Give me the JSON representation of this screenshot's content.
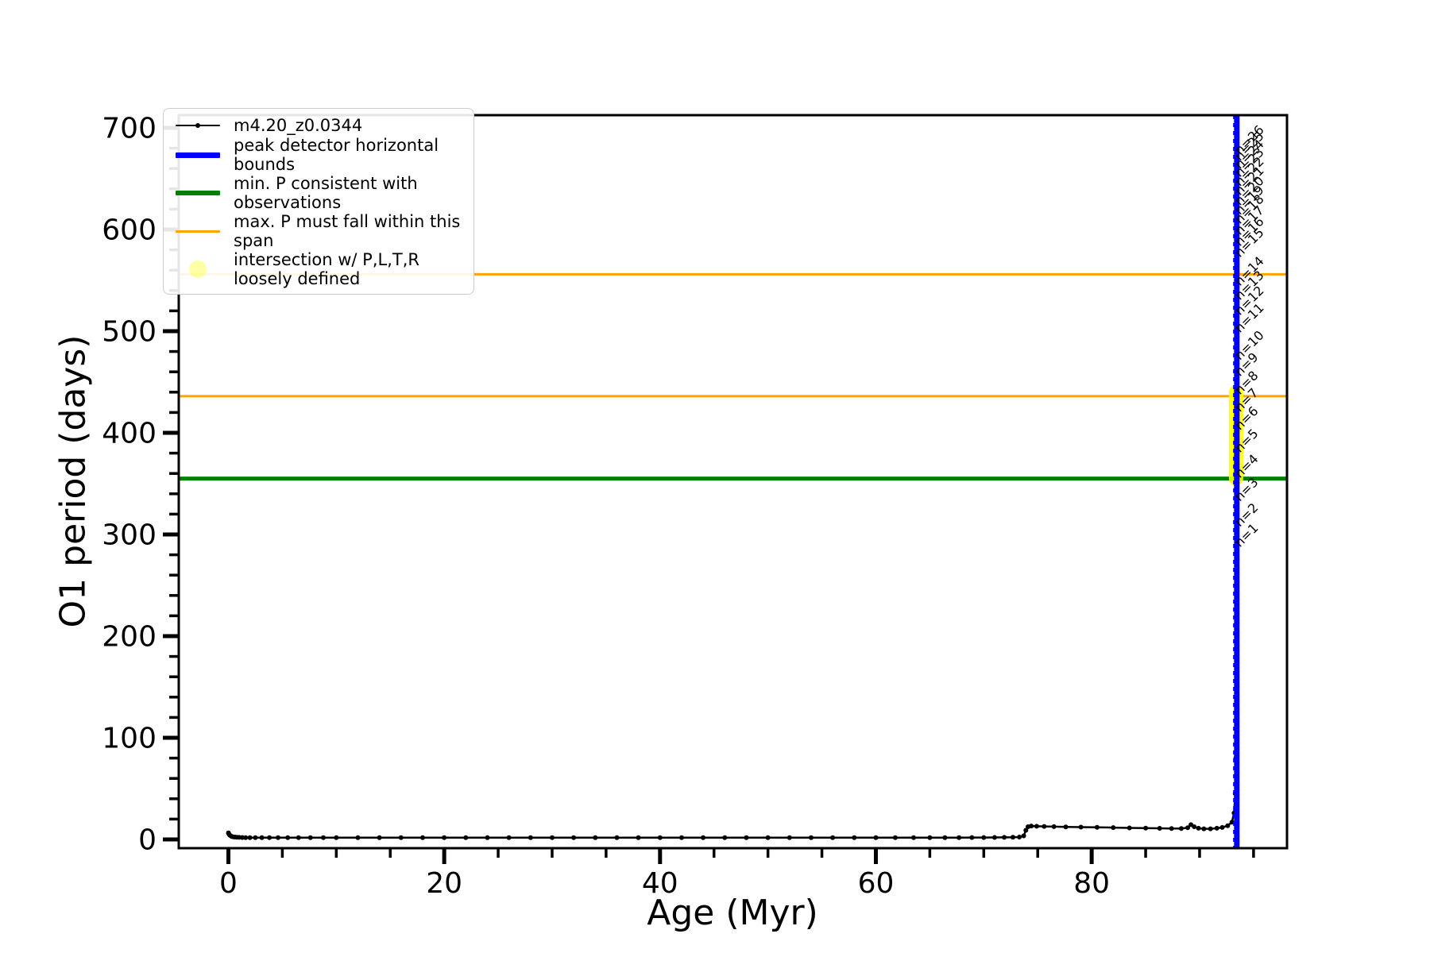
{
  "figure": {
    "xlabel": "Age (Myr)",
    "ylabel": "O1 period (days)"
  },
  "legend": {
    "items": [
      {
        "label": "m4.20_z0.0344",
        "swatch": "line-dot",
        "color": "#000000"
      },
      {
        "label": "peak detector horizontal bounds",
        "swatch": "thick-line",
        "color": "#0000FF"
      },
      {
        "label": "min. P consistent with observations",
        "swatch": "thick-line",
        "color": "#008000"
      },
      {
        "label": "max. P must fall within this span",
        "swatch": "line",
        "color": "#FFA500"
      },
      {
        "label": "intersection w/ P,L,T,R",
        "label2": "loosely defined",
        "swatch": "circle",
        "color": "#FFFF00"
      }
    ]
  },
  "chart_data": {
    "type": "line",
    "title": "",
    "xlabel": "Age (Myr)",
    "ylabel": "O1 period (days)",
    "xlim": [
      -4.6,
      98.1
    ],
    "ylim": [
      -8.6,
      712.5
    ],
    "xticks_major": [
      0,
      20,
      40,
      60,
      80
    ],
    "xticks_minor": [
      5,
      10,
      15,
      25,
      30,
      35,
      45,
      50,
      55,
      65,
      70,
      75,
      85,
      90,
      95
    ],
    "yticks_major": [
      0,
      100,
      200,
      300,
      400,
      500,
      600,
      700
    ],
    "yticks_minor": [
      20,
      40,
      60,
      80,
      120,
      140,
      160,
      180,
      220,
      240,
      260,
      280,
      320,
      340,
      360,
      380,
      420,
      440,
      460,
      480,
      520,
      540,
      560,
      580,
      620,
      640,
      660,
      680
    ],
    "grid": false,
    "legend_position": "upper left",
    "series": [
      {
        "name": "m4.20_z0.0344",
        "color": "#000000",
        "marker": "point",
        "points": [
          [
            0,
            6.5
          ],
          [
            0.05,
            5.2
          ],
          [
            0.12,
            4.3
          ],
          [
            0.2,
            3.6
          ],
          [
            0.3,
            3.0
          ],
          [
            0.45,
            2.6
          ],
          [
            0.6,
            2.3
          ],
          [
            0.8,
            2.1
          ],
          [
            1.0,
            2.0
          ],
          [
            1.3,
            1.9
          ],
          [
            1.6,
            1.8
          ],
          [
            2.0,
            1.75
          ],
          [
            2.5,
            1.7
          ],
          [
            3.1,
            1.7
          ],
          [
            3.8,
            1.7
          ],
          [
            4.6,
            1.7
          ],
          [
            5.5,
            1.7
          ],
          [
            6.5,
            1.7
          ],
          [
            7.6,
            1.7
          ],
          [
            8.8,
            1.7
          ],
          [
            10,
            1.7
          ],
          [
            12,
            1.7
          ],
          [
            14,
            1.7
          ],
          [
            16,
            1.7
          ],
          [
            18,
            1.7
          ],
          [
            20,
            1.7
          ],
          [
            22,
            1.7
          ],
          [
            24,
            1.7
          ],
          [
            26,
            1.7
          ],
          [
            28,
            1.7
          ],
          [
            30,
            1.7
          ],
          [
            32,
            1.7
          ],
          [
            34,
            1.7
          ],
          [
            36,
            1.7
          ],
          [
            38,
            1.7
          ],
          [
            40,
            1.7
          ],
          [
            42,
            1.7
          ],
          [
            44,
            1.7
          ],
          [
            46,
            1.7
          ],
          [
            48,
            1.7
          ],
          [
            50,
            1.7
          ],
          [
            52,
            1.7
          ],
          [
            54,
            1.7
          ],
          [
            56,
            1.7
          ],
          [
            58,
            1.7
          ],
          [
            60,
            1.7
          ],
          [
            61.8,
            1.7
          ],
          [
            63.5,
            1.7
          ],
          [
            65,
            1.7
          ],
          [
            66.4,
            1.75
          ],
          [
            67.7,
            1.8
          ],
          [
            68.9,
            1.85
          ],
          [
            70,
            1.9
          ],
          [
            71,
            1.95
          ],
          [
            71.9,
            2.0
          ],
          [
            72.7,
            2.1
          ],
          [
            73.3,
            2.3
          ],
          [
            73.7,
            3.5
          ],
          [
            73.9,
            9.0
          ],
          [
            74.1,
            12.5
          ],
          [
            74.4,
            13.2
          ],
          [
            74.9,
            13.0
          ],
          [
            75.6,
            12.8
          ],
          [
            76.5,
            12.6
          ],
          [
            77.6,
            12.3
          ],
          [
            79,
            12.1
          ],
          [
            80.5,
            11.9
          ],
          [
            82,
            11.6
          ],
          [
            83.5,
            11.3
          ],
          [
            85,
            11.1
          ],
          [
            86.3,
            10.9
          ],
          [
            87.4,
            10.8
          ],
          [
            88.3,
            10.8
          ],
          [
            88.9,
            11.5
          ],
          [
            89.2,
            14.5
          ],
          [
            89.5,
            12.5
          ],
          [
            89.9,
            11.0
          ],
          [
            90.4,
            10.5
          ],
          [
            91.0,
            10.5
          ],
          [
            91.6,
            11.0
          ],
          [
            92.1,
            11.8
          ],
          [
            92.6,
            13.5
          ],
          [
            93.0,
            17
          ],
          [
            93.2,
            26
          ],
          [
            93.3,
            45
          ],
          [
            93.36,
            80
          ],
          [
            93.4,
            140
          ],
          [
            93.43,
            240
          ],
          [
            93.45,
            420
          ],
          [
            93.47,
            700
          ]
        ]
      }
    ],
    "hlines": [
      {
        "value": 556,
        "color": "#FFA500",
        "width": 3,
        "meaning": "max. P must fall within this span (upper)"
      },
      {
        "value": 436,
        "color": "#FFA500",
        "width": 3,
        "meaning": "max. P must fall within this span (lower)"
      },
      {
        "value": 355,
        "color": "#008000",
        "width": 5,
        "meaning": "min. P consistent with observations"
      }
    ],
    "vlines": [
      {
        "x": 93.18,
        "color": "#0000FF",
        "width": 2,
        "style": "dashed",
        "meaning": "peak detector horizontal bound (left)"
      },
      {
        "x": 93.45,
        "color": "#0000FF",
        "width": 7,
        "style": "solid",
        "meaning": "peak detector horizontal bound"
      }
    ],
    "intersection_markers": {
      "x": 93.38,
      "p_from": 348,
      "p_to": 447,
      "color": "#FFFF00",
      "meaning": "intersection w/ P,L,T,R loosely defined"
    },
    "n_labels": [
      {
        "label": "n=1",
        "y": 287
      },
      {
        "label": "n=2",
        "y": 307
      },
      {
        "label": "n=3",
        "y": 332
      },
      {
        "label": "n=4",
        "y": 355
      },
      {
        "label": "n=5",
        "y": 380
      },
      {
        "label": "n=6",
        "y": 402
      },
      {
        "label": "n=7",
        "y": 420
      },
      {
        "label": "n=8",
        "y": 437
      },
      {
        "label": "n=9",
        "y": 455
      },
      {
        "label": "n=10",
        "y": 471
      },
      {
        "label": "n=11",
        "y": 498
      },
      {
        "label": "n=12",
        "y": 515
      },
      {
        "label": "n=13",
        "y": 530
      },
      {
        "label": "n=14",
        "y": 544
      },
      {
        "label": "n=15",
        "y": 572
      },
      {
        "label": "n=16",
        "y": 583
      },
      {
        "label": "n=17",
        "y": 594
      },
      {
        "label": "n=18",
        "y": 605
      },
      {
        "label": "n=19",
        "y": 614
      },
      {
        "label": "n=20",
        "y": 623
      },
      {
        "label": "n=21",
        "y": 633
      },
      {
        "label": "n=22",
        "y": 642
      },
      {
        "label": "n=23",
        "y": 651
      },
      {
        "label": "n=24",
        "y": 659
      },
      {
        "label": "n=25",
        "y": 667
      },
      {
        "label": "n=26",
        "y": 673
      }
    ]
  }
}
